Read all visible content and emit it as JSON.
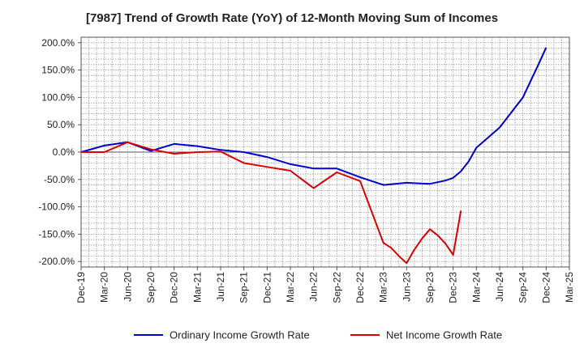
{
  "chart_data": {
    "type": "line",
    "title": "[7987]  Trend of Growth Rate (YoY) of 12-Month Moving Sum of Incomes",
    "xlabel": "",
    "ylabel": "",
    "ylim": [
      -210,
      210
    ],
    "grid": true,
    "legend_position": "bottom",
    "y_ticks": [
      200,
      150,
      100,
      50,
      0,
      -50,
      -100,
      -150,
      -200
    ],
    "y_tick_labels": [
      "200.0%",
      "150.0%",
      "100.0%",
      "50.0%",
      "0.0%",
      "-50.0%",
      "-100.0%",
      "-150.0%",
      "-200.0%"
    ],
    "x_tick_labels": [
      "Dec-19",
      "Mar-20",
      "Jun-20",
      "Sep-20",
      "Dec-20",
      "Mar-21",
      "Jun-21",
      "Sep-21",
      "Dec-21",
      "Mar-22",
      "Jun-22",
      "Sep-22",
      "Dec-22",
      "Mar-23",
      "Jun-23",
      "Sep-23",
      "Dec-23",
      "Mar-24",
      "Jun-24",
      "Sep-24",
      "Dec-24",
      "Mar-25"
    ],
    "series": [
      {
        "name": "Ordinary Income Growth Rate",
        "color": "#0000cc",
        "points": [
          [
            "Dec-19",
            0
          ],
          [
            "Mar-20",
            12
          ],
          [
            "Jun-20",
            18
          ],
          [
            "Sep-20",
            2
          ],
          [
            "Dec-20",
            15
          ],
          [
            "Mar-21",
            11
          ],
          [
            "Jun-21",
            4
          ],
          [
            "Sep-21",
            0
          ],
          [
            "Dec-21",
            -9
          ],
          [
            "Mar-22",
            -22
          ],
          [
            "Jun-22",
            -30
          ],
          [
            "Sep-22",
            -30
          ],
          [
            "Dec-22",
            -46
          ],
          [
            "Mar-23",
            -60
          ],
          [
            "Jun-23",
            -56
          ],
          [
            "Sep-23",
            -58
          ],
          [
            "Nov-23",
            -52
          ],
          [
            "Dec-23",
            -47
          ],
          [
            "Jan-24",
            -35
          ],
          [
            "Feb-24",
            -17
          ],
          [
            "Mar-24",
            8
          ],
          [
            "Jun-24",
            45
          ],
          [
            "Sep-24",
            100
          ],
          [
            "Oct-24",
            130
          ],
          [
            "Nov-24",
            160
          ],
          [
            "Dec-24",
            191
          ]
        ]
      },
      {
        "name": "Net Income Growth Rate",
        "color": "#dd0000",
        "points": [
          [
            "Dec-19",
            0
          ],
          [
            "Mar-20",
            0
          ],
          [
            "Jun-20",
            18
          ],
          [
            "Sep-20",
            5
          ],
          [
            "Dec-20",
            -3
          ],
          [
            "Mar-21",
            0
          ],
          [
            "Jun-21",
            1
          ],
          [
            "Sep-21",
            -20
          ],
          [
            "Dec-21",
            -27
          ],
          [
            "Mar-22",
            -34
          ],
          [
            "Jun-22",
            -66
          ],
          [
            "Sep-22",
            -37
          ],
          [
            "Dec-22",
            -53
          ],
          [
            "Mar-23",
            -166
          ],
          [
            "Apr-23",
            -175
          ],
          [
            "May-23",
            -190
          ],
          [
            "Jun-23",
            -203
          ],
          [
            "Jul-23",
            -178
          ],
          [
            "Aug-23",
            -158
          ],
          [
            "Sep-23",
            -141
          ],
          [
            "Oct-23",
            -152
          ],
          [
            "Nov-23",
            -167
          ],
          [
            "Dec-23",
            -188
          ],
          [
            "Jan-24",
            -107
          ]
        ]
      }
    ]
  }
}
